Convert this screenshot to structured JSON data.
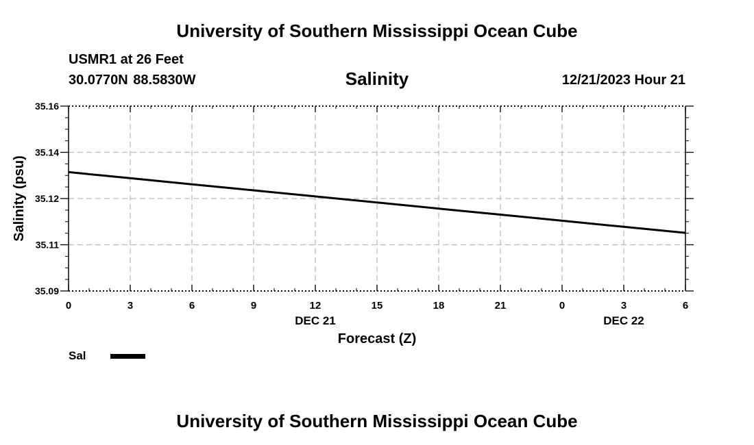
{
  "header": {
    "title_top": "University of Southern Mississippi Ocean Cube",
    "station": "USMR1 at 26 Feet",
    "coordinates": "30.0770N  88.5830W",
    "timestamp": "12/21/2023 Hour 21"
  },
  "footer": {
    "title_bottom": "University of Southern Mississippi Ocean Cube"
  },
  "legend": {
    "label": "Sal",
    "color": "#000000"
  },
  "colors": {
    "line": "#000000",
    "grid": "#bbbbbb",
    "axis": "#000000",
    "background": "#ffffff"
  },
  "chart_data": {
    "type": "line",
    "title": "Salinity",
    "xlabel": "Forecast (Z)",
    "ylabel": "Salinity (psu)",
    "x_tick_labels": [
      "0",
      "3",
      "6",
      "9",
      "12",
      "15",
      "18",
      "21",
      "0",
      "3",
      "6"
    ],
    "x_date_labels": [
      {
        "hour_index": 12,
        "label": "DEC 21"
      },
      {
        "hour_index": 27,
        "label": "DEC 22"
      }
    ],
    "xlim": [
      0,
      30
    ],
    "y_tick_labels": [
      "35.16",
      "35.14",
      "35.12",
      "35.11",
      "35.09"
    ],
    "ylim": [
      35.09,
      35.16
    ],
    "grid": true,
    "series": [
      {
        "name": "Sal",
        "x": [
          0,
          3,
          6,
          9,
          12,
          15,
          18,
          21,
          24,
          27,
          30
        ],
        "values": [
          35.135,
          35.1327,
          35.1304,
          35.1281,
          35.1258,
          35.1235,
          35.1212,
          35.1189,
          35.1166,
          35.1143,
          35.112
        ]
      }
    ]
  }
}
